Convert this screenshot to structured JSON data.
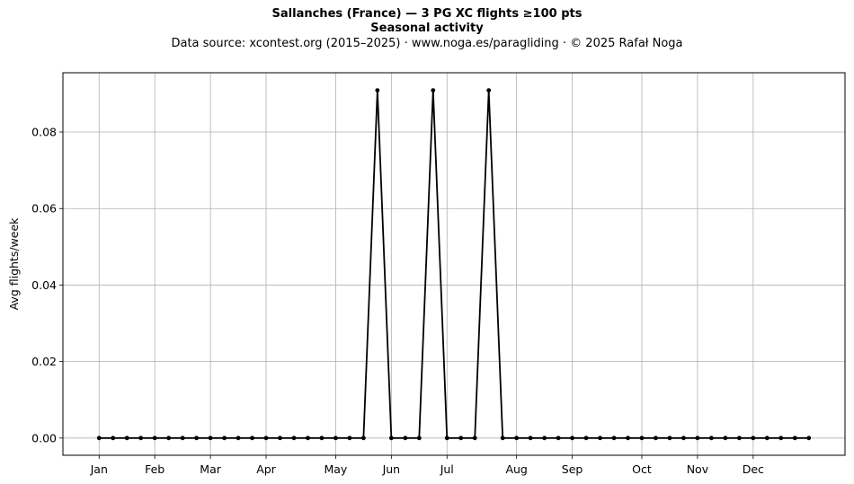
{
  "chart_data": {
    "type": "line",
    "title": "Sallanches (France)  —  3 PG XC flights ≥100 pts",
    "subtitle": "Seasonal activity",
    "source_note": "Data source: xcontest.org (2015–2025)  ·  www.noga.es/paragliding  ·  © 2025 Rafał Noga",
    "xlabel": "",
    "ylabel": "Avg flights/week",
    "ylim": [
      -0.0045,
      0.0955
    ],
    "yticks": [
      "0.00",
      "0.02",
      "0.04",
      "0.06",
      "0.08"
    ],
    "ytick_values": [
      0,
      0.02,
      0.04,
      0.06,
      0.08
    ],
    "x_tick_labels": [
      "Jan",
      "Feb",
      "Mar",
      "Apr",
      "May",
      "Jun",
      "Jul",
      "Aug",
      "Sep",
      "Oct",
      "Nov",
      "Dec"
    ],
    "x_tick_weeks": [
      1,
      5,
      9,
      13,
      18,
      22,
      26,
      31,
      35,
      40,
      44,
      48
    ],
    "grid": true,
    "series": [
      {
        "color": "#000000",
        "x": [
          1,
          2,
          3,
          4,
          5,
          6,
          7,
          8,
          9,
          10,
          11,
          12,
          13,
          14,
          15,
          16,
          17,
          18,
          19,
          20,
          21,
          22,
          23,
          24,
          25,
          26,
          27,
          28,
          29,
          30,
          31,
          32,
          33,
          34,
          35,
          36,
          37,
          38,
          39,
          40,
          41,
          42,
          43,
          44,
          45,
          46,
          47,
          48,
          49,
          50,
          51,
          52
        ],
        "values": [
          0,
          0,
          0,
          0,
          0,
          0,
          0,
          0,
          0,
          0,
          0,
          0,
          0,
          0,
          0,
          0,
          0,
          0,
          0,
          0,
          0.0909,
          0,
          0,
          0,
          0.0909,
          0,
          0,
          0,
          0.0909,
          0,
          0,
          0,
          0,
          0,
          0,
          0,
          0,
          0,
          0,
          0,
          0,
          0,
          0,
          0,
          0,
          0,
          0,
          0,
          0,
          0,
          0,
          0
        ]
      }
    ]
  }
}
